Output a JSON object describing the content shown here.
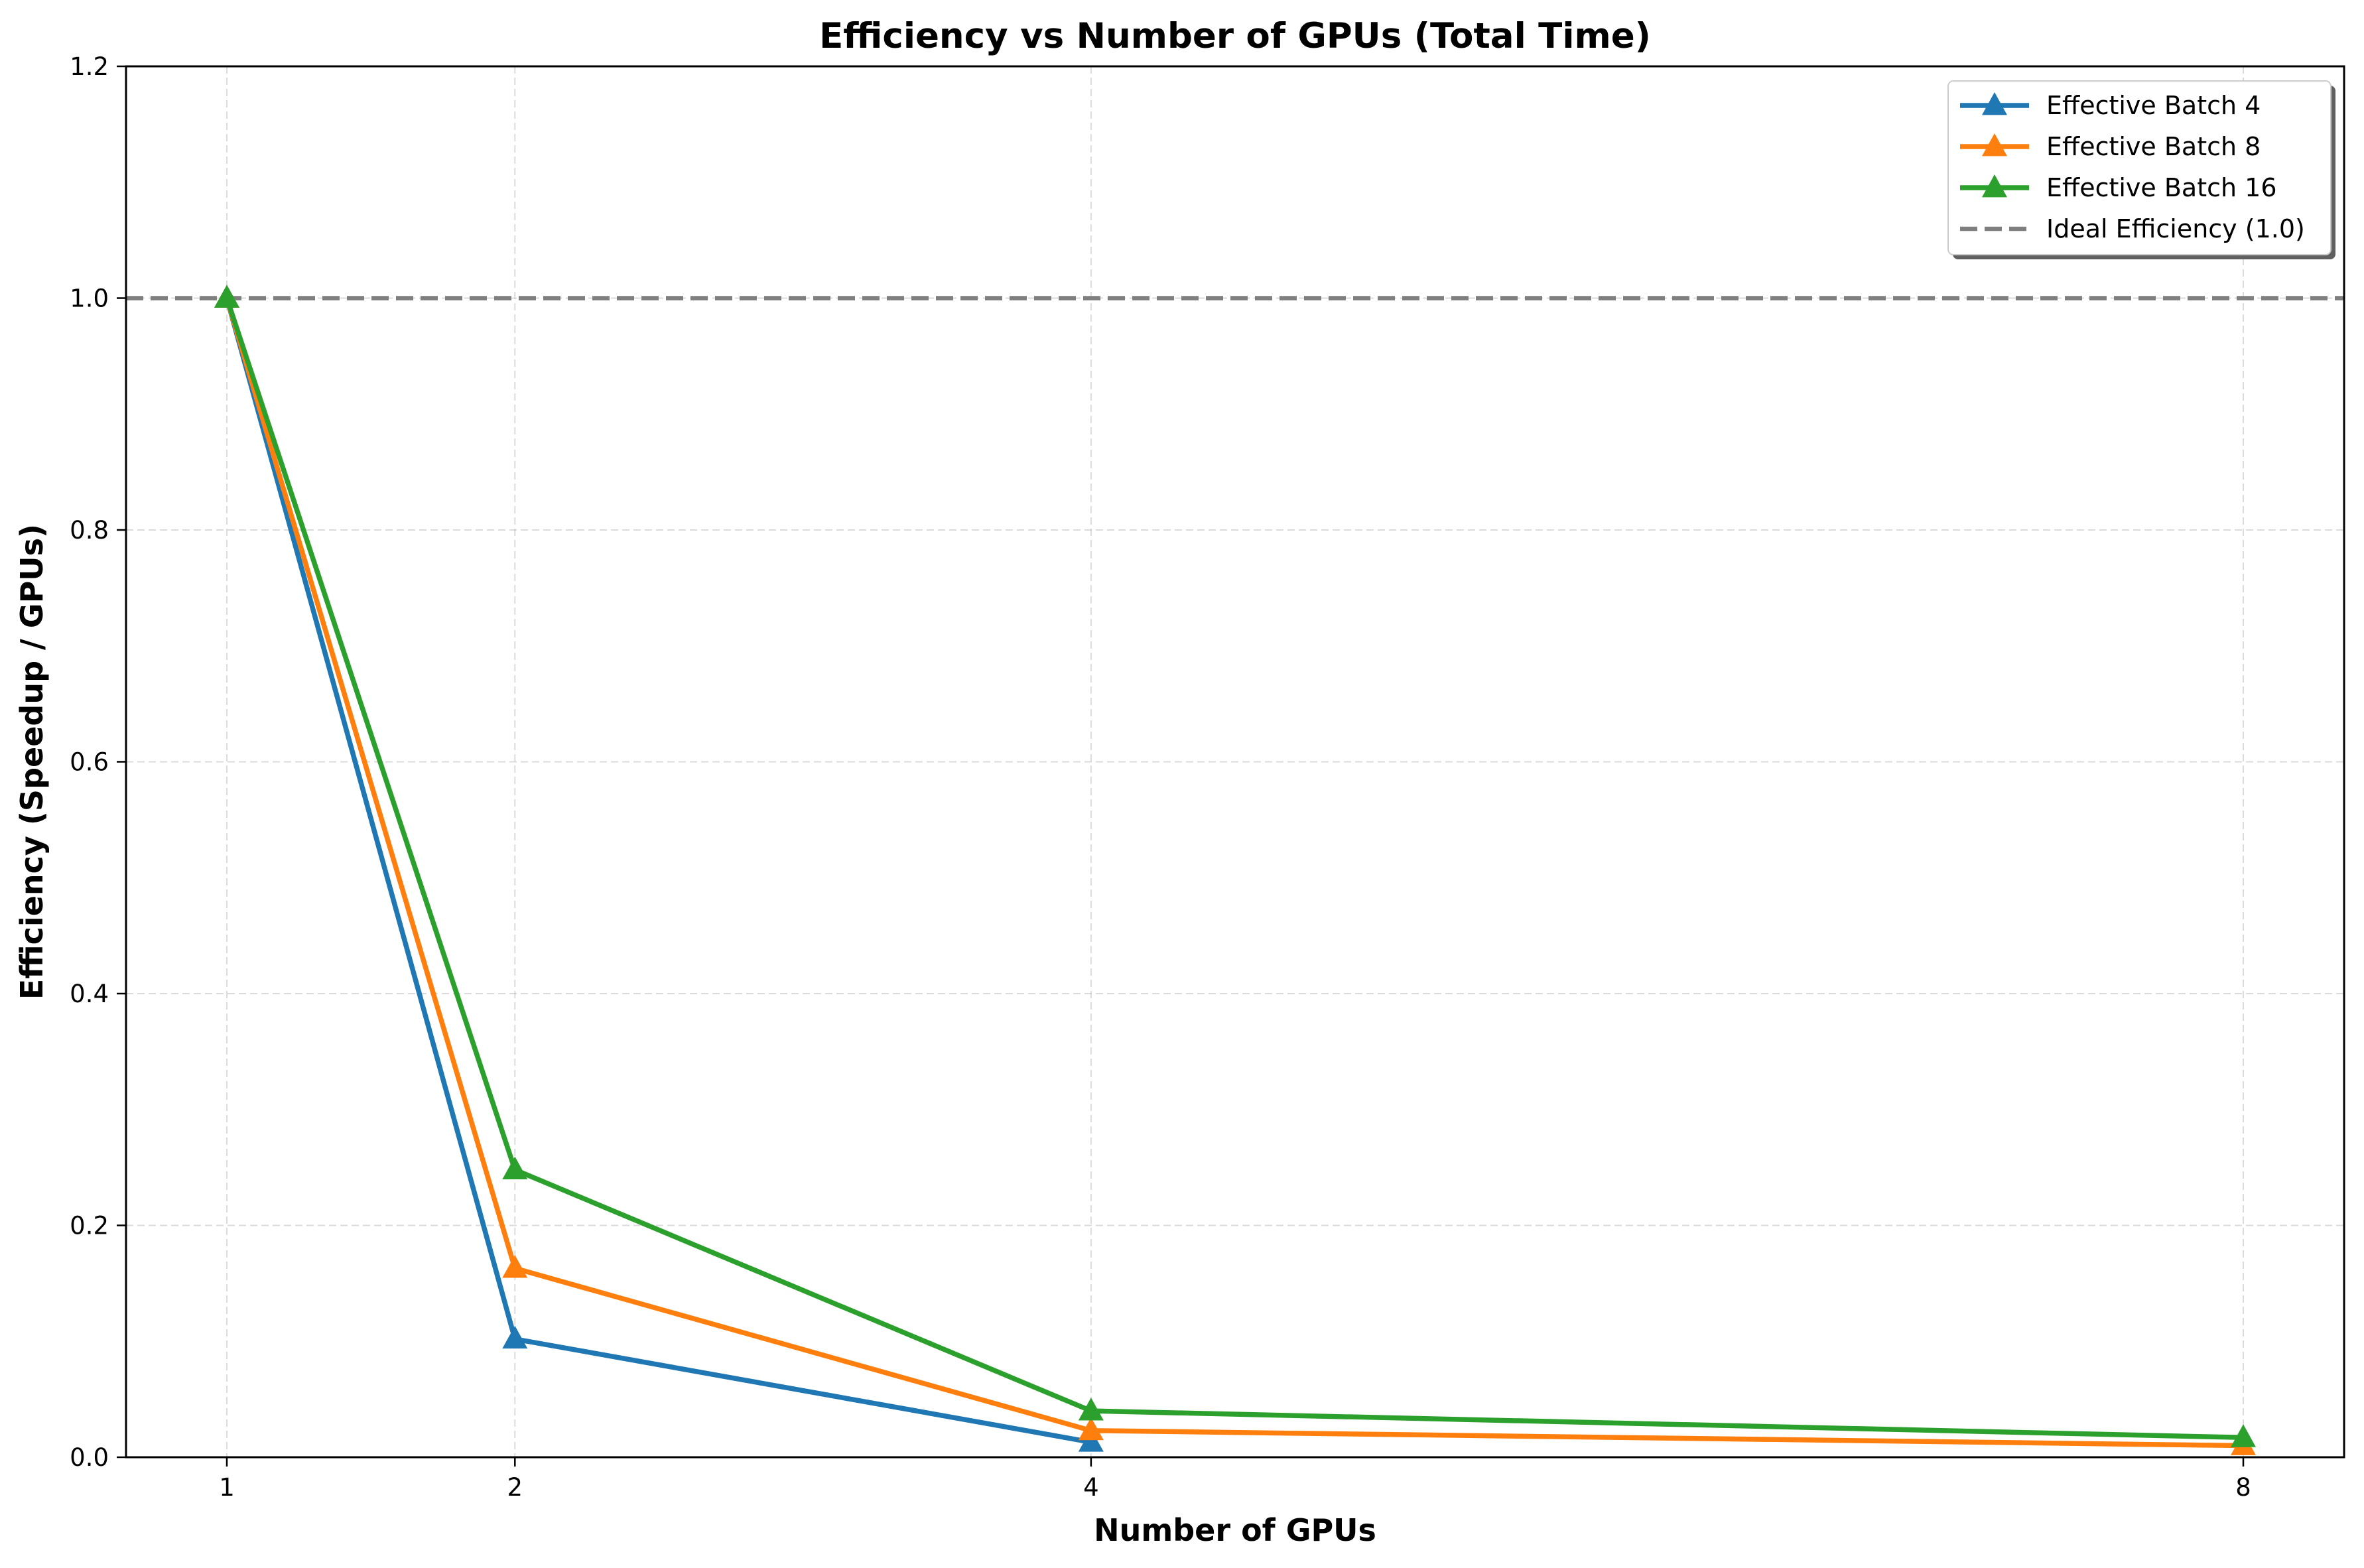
{
  "chart_data": {
    "type": "line",
    "title": "Efficiency vs Number of GPUs (Total Time)",
    "xlabel": "Number of GPUs",
    "ylabel": "Efficiency (Speedup / GPUs)",
    "x": [
      1,
      2,
      4,
      8
    ],
    "x_tick_labels": [
      "1",
      "2",
      "4",
      "8"
    ],
    "xlim": [
      0.65,
      8.35
    ],
    "ylim": [
      0,
      1.2
    ],
    "y_ticks": [
      0.0,
      0.2,
      0.4,
      0.6,
      0.8,
      1.0,
      1.2
    ],
    "y_tick_labels": [
      "0.0",
      "0.2",
      "0.4",
      "0.6",
      "0.8",
      "1.0",
      "1.2"
    ],
    "grid": true,
    "legend_position": "top-right",
    "series": [
      {
        "name": "Effective Batch 4",
        "color": "#1f77b4",
        "marker": "triangle",
        "values": [
          1.0,
          0.102,
          0.013,
          null
        ]
      },
      {
        "name": "Effective Batch 8",
        "color": "#ff7f0e",
        "marker": "triangle",
        "values": [
          1.0,
          0.163,
          0.023,
          0.01
        ]
      },
      {
        "name": "Effective Batch 16",
        "color": "#2ca02c",
        "marker": "triangle",
        "values": [
          1.0,
          0.248,
          0.04,
          0.017
        ]
      }
    ],
    "reference_line": {
      "name": "Ideal Efficiency (1.0)",
      "y": 1.0,
      "color": "#7f7f7f",
      "style": "dashed"
    }
  }
}
